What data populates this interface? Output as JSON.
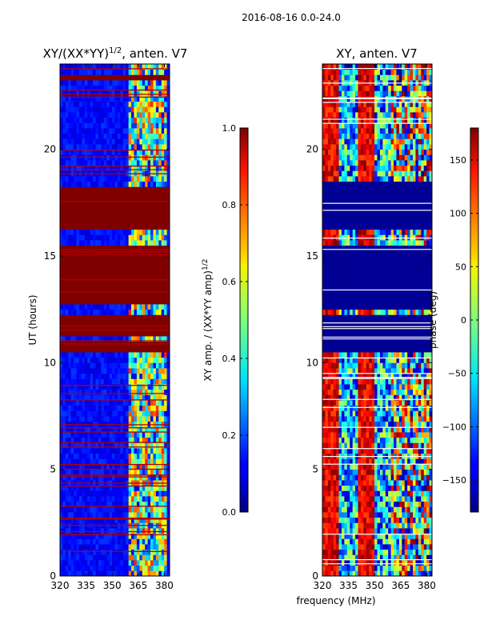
{
  "figure": {
    "suptitle": "2016-08-16 0.0-24.0",
    "xlabel": "frequency (MHz)",
    "ylabel": "UT (hours)"
  },
  "chart_data": [
    {
      "type": "heatmap",
      "title_main": "XY/(XX*YY)",
      "title_sup": "1/2",
      "title_rest": ", anten. V7",
      "x_ticks": [
        "320",
        "335",
        "350",
        "365",
        "380"
      ],
      "x_tick_values": [
        320,
        335,
        350,
        365,
        380
      ],
      "y_ticks": [
        "0",
        "5",
        "10",
        "15",
        "20"
      ],
      "y_tick_values": [
        0,
        5,
        10,
        15,
        20
      ],
      "xlim": [
        320,
        383
      ],
      "ylim": [
        0,
        24
      ],
      "colorbar": {
        "label_main": "XY amp. / (XX*YY amp)",
        "label_sup": "1/2",
        "ticks": [
          "0.0",
          "0.2",
          "0.4",
          "0.6",
          "0.8",
          "1.0"
        ],
        "tick_values": [
          0.0,
          0.2,
          0.4,
          0.6,
          0.8,
          1.0
        ],
        "range": [
          0,
          1
        ]
      },
      "saturated_blocks_ut": [
        [
          10.6,
          11.0
        ],
        [
          11.3,
          12.2
        ],
        [
          12.7,
          15.6
        ],
        [
          16.3,
          18.3
        ],
        [
          23.35,
          23.5
        ]
      ],
      "high_activity_freq_mhz": [
        360,
        382
      ]
    },
    {
      "type": "heatmap",
      "title": "XY, anten. V7",
      "x_ticks": [
        "320",
        "335",
        "350",
        "365",
        "380"
      ],
      "x_tick_values": [
        320,
        335,
        350,
        365,
        380
      ],
      "y_ticks": [
        "0",
        "5",
        "10",
        "15",
        "20"
      ],
      "y_tick_values": [
        0,
        5,
        10,
        15,
        20
      ],
      "xlim": [
        320,
        383
      ],
      "ylim": [
        0,
        24
      ],
      "colorbar": {
        "label": "phase (deg)",
        "ticks": [
          "150",
          "100",
          "50",
          "0",
          "−50",
          "−100",
          "−150"
        ],
        "tick_values": [
          150,
          100,
          50,
          0,
          -50,
          -100,
          -150
        ],
        "range": [
          -180,
          180
        ]
      },
      "low_phase_blocks_ut": [
        [
          10.6,
          12.2
        ],
        [
          12.4,
          15.6
        ],
        [
          16.2,
          18.4
        ]
      ]
    }
  ]
}
